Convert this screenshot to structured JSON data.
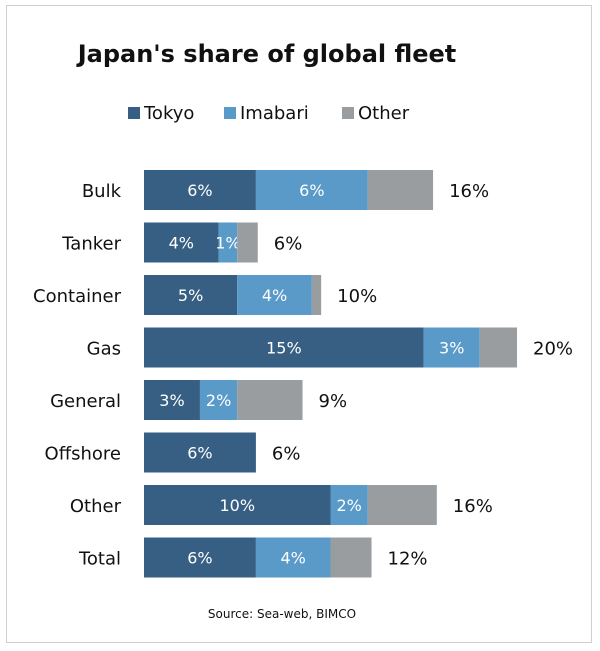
{
  "colors": {
    "tokyo": "#365f83",
    "imabari": "#5a9ac9",
    "other": "#999d9f",
    "background": "#ffffff"
  },
  "chart_data": {
    "type": "bar",
    "orientation": "horizontal",
    "stacked": true,
    "title": "Japan's share of global fleet",
    "source": "Source: Sea-web, BIMCO",
    "legend": {
      "position": "top",
      "entries": [
        "Tokyo",
        "Imabari",
        "Other"
      ]
    },
    "categories": [
      "Bulk",
      "Tanker",
      "Container",
      "Gas",
      "General",
      "Offshore",
      "Other",
      "Total"
    ],
    "series": [
      {
        "name": "Tokyo",
        "values": [
          6,
          4,
          5,
          15,
          3,
          6,
          10,
          6
        ],
        "labels": [
          "6%",
          "4%",
          "5%",
          "15%",
          "3%",
          "6%",
          "10%",
          "6%"
        ]
      },
      {
        "name": "Imabari",
        "values": [
          6,
          1,
          4,
          3,
          2,
          0,
          2,
          4
        ],
        "labels": [
          "6%",
          "1%",
          "4%",
          "3%",
          "2%",
          "",
          "2%",
          "4%"
        ]
      },
      {
        "name": "Other",
        "values": [
          3.5,
          1.1,
          0.5,
          2,
          3.5,
          0,
          3.7,
          2.2
        ],
        "labels": [
          "",
          "",
          "",
          "",
          "",
          "",
          "",
          ""
        ]
      }
    ],
    "totals": [
      "16%",
      "6%",
      "10%",
      "20%",
      "9%",
      "6%",
      "16%",
      "12%"
    ],
    "xlim": [
      0,
      20
    ],
    "grid": false,
    "axes_visible": false
  }
}
